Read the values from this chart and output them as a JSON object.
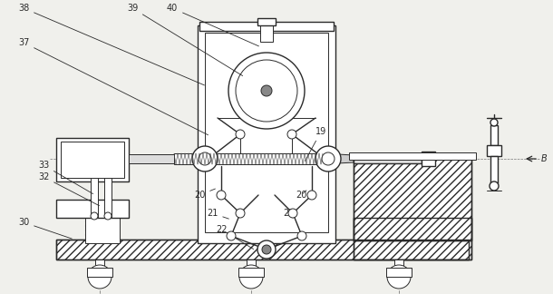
{
  "bg_color": "#f0f0ec",
  "line_color": "#2a2a2a",
  "figsize": [
    6.1,
    3.24
  ],
  "dpi": 100,
  "fs_label": 7.0
}
